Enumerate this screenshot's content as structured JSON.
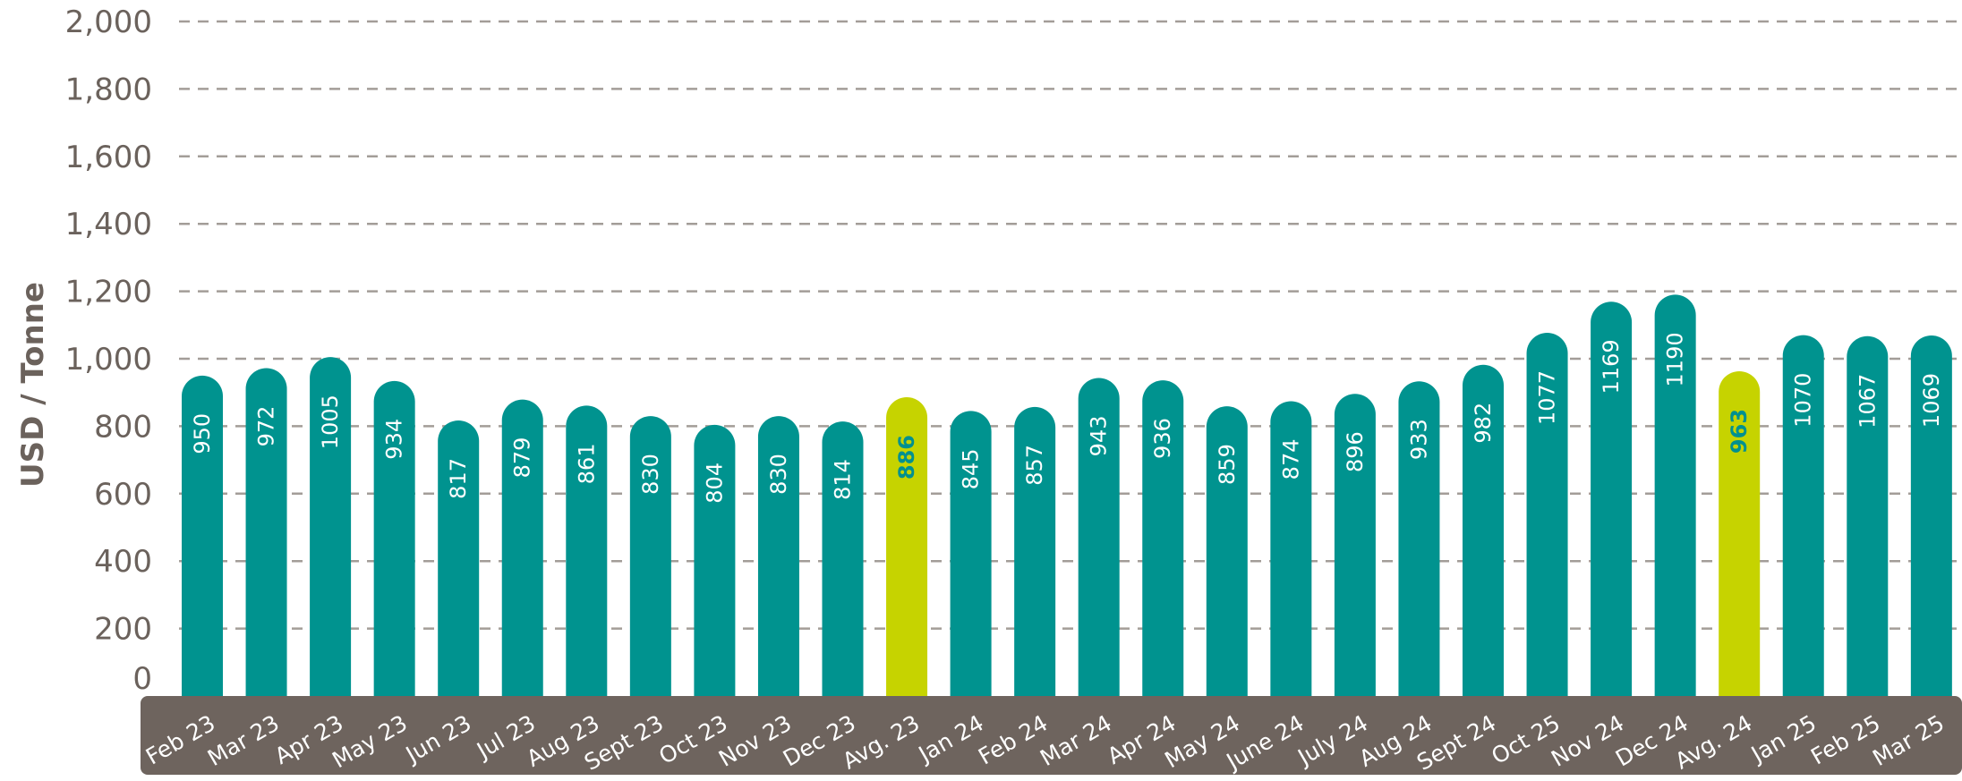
{
  "chart_data": {
    "type": "bar",
    "ylabel": "USD / Tonne",
    "ylim": [
      0,
      2000
    ],
    "yticks": [
      0,
      200,
      400,
      600,
      800,
      1000,
      1200,
      1400,
      1600,
      1800,
      2000
    ],
    "ytick_labels": [
      "0",
      "200",
      "400",
      "600",
      "800",
      "1,000",
      "1,200",
      "1,400",
      "1,600",
      "1,800",
      "2,000"
    ],
    "grid": "dashed horizontal",
    "categories": [
      "Feb 23",
      "Mar 23",
      "Apr 23",
      "May 23",
      "Jun 23",
      "Jul 23",
      "Aug 23",
      "Sept 23",
      "Oct 23",
      "Nov 23",
      "Dec 23",
      "Avg. 23",
      "Jan 24",
      "Feb 24",
      "Mar 24",
      "Apr 24",
      "May 24",
      "June 24",
      "July 24",
      "Aug 24",
      "Sept 24",
      "Oct 25",
      "Nov 24",
      "Dec 24",
      "Avg. 24",
      "Jan 25",
      "Feb 25",
      "Mar 25"
    ],
    "values": [
      950,
      972,
      1005,
      934,
      817,
      879,
      861,
      830,
      804,
      830,
      814,
      886,
      845,
      857,
      943,
      936,
      859,
      874,
      896,
      933,
      982,
      1077,
      1169,
      1190,
      963,
      1070,
      1067,
      1069
    ],
    "value_labels": [
      "950",
      "972",
      "1005",
      "934",
      "817",
      "879",
      "861",
      "830",
      "804",
      "830",
      "814",
      "886",
      "845",
      "857",
      "943",
      "936",
      "859",
      "874",
      "896",
      "933",
      "982",
      "1077",
      "1169",
      "1190",
      "963",
      "1070",
      "1067",
      "1069"
    ],
    "highlighted_indices": [
      11,
      24
    ],
    "colors": {
      "bar": "#00938f",
      "highlight": "#c6d300",
      "axis_band": "#6e645e",
      "grid": "#a39d98",
      "text": "#6b625c",
      "avg_label": "#00908f"
    }
  }
}
